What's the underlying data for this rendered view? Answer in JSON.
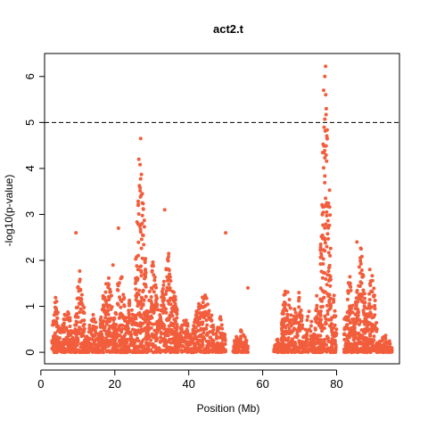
{
  "chart_data": {
    "type": "scatter",
    "title": "act2.t",
    "xlabel": "Position (Mb)",
    "ylabel": "-log10(p-value)",
    "xlim": [
      1,
      97
    ],
    "ylim": [
      -0.25,
      6.5
    ],
    "x_ticks": [
      0,
      20,
      40,
      60,
      80
    ],
    "y_ticks": [
      0,
      1,
      2,
      3,
      4,
      5,
      6
    ],
    "x_tick_labels": [
      "0",
      "20",
      "40",
      "60",
      "80"
    ],
    "y_tick_labels": [
      "0",
      "1",
      "2",
      "3",
      "4",
      "5",
      "6"
    ],
    "threshold": 5,
    "threshold_style": "dashed",
    "grid": false,
    "point_color": "#f25d3c",
    "clusters": [
      {
        "from": 3,
        "to": 5,
        "max": 1.3
      },
      {
        "from": 5,
        "to": 9,
        "max": 1.0
      },
      {
        "from": 9,
        "to": 12,
        "max": 1.8
      },
      {
        "from": 12,
        "to": 16,
        "max": 0.9
      },
      {
        "from": 16,
        "to": 20,
        "max": 1.9
      },
      {
        "from": 20,
        "to": 23,
        "max": 2.0
      },
      {
        "from": 23,
        "to": 25.5,
        "max": 1.5
      },
      {
        "from": 25.5,
        "to": 28.5,
        "max": 4.6
      },
      {
        "from": 28.5,
        "to": 32,
        "max": 2.0
      },
      {
        "from": 32,
        "to": 37,
        "max": 2.2
      },
      {
        "from": 37,
        "to": 41,
        "max": 0.8
      },
      {
        "from": 41,
        "to": 47,
        "max": 1.4
      },
      {
        "from": 47,
        "to": 50,
        "max": 0.8
      },
      {
        "from": 52,
        "to": 56,
        "max": 0.5
      },
      {
        "from": 63,
        "to": 65,
        "max": 0.3
      },
      {
        "from": 65,
        "to": 68,
        "max": 1.7
      },
      {
        "from": 68,
        "to": 71,
        "max": 1.5
      },
      {
        "from": 71,
        "to": 74,
        "max": 0.9
      },
      {
        "from": 74,
        "to": 75.5,
        "max": 1.5
      },
      {
        "from": 75.5,
        "to": 78.5,
        "max": 6.2
      },
      {
        "from": 78.5,
        "to": 80,
        "max": 1.3
      },
      {
        "from": 82,
        "to": 85,
        "max": 1.7
      },
      {
        "from": 85,
        "to": 88,
        "max": 2.4
      },
      {
        "from": 88,
        "to": 91,
        "max": 1.8
      },
      {
        "from": 91,
        "to": 95,
        "max": 0.4
      }
    ],
    "highlighted_points": [
      {
        "x": 9.5,
        "y": 2.6
      },
      {
        "x": 19.5,
        "y": 1.9
      },
      {
        "x": 21,
        "y": 2.7
      },
      {
        "x": 27,
        "y": 4.65
      },
      {
        "x": 26.5,
        "y": 4.2
      },
      {
        "x": 33.5,
        "y": 3.1
      },
      {
        "x": 50,
        "y": 2.6
      },
      {
        "x": 56,
        "y": 1.4
      },
      {
        "x": 77,
        "y": 6.22
      },
      {
        "x": 76.8,
        "y": 6.0
      },
      {
        "x": 76.5,
        "y": 5.7
      },
      {
        "x": 77.2,
        "y": 5.3
      },
      {
        "x": 85.5,
        "y": 2.4
      },
      {
        "x": 89,
        "y": 1.8
      }
    ]
  }
}
